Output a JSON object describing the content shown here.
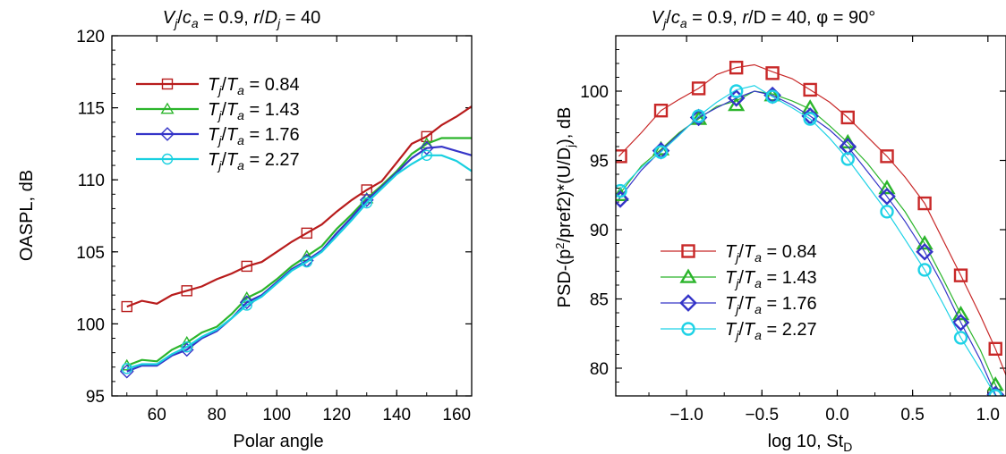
{
  "chart_data": [
    {
      "type": "line",
      "title_parts": {
        "v": "V",
        "j": "j",
        "slash": "/",
        "c": "c",
        "a": "a",
        "eq": " = 0.9, ",
        "r": "r",
        "slash2": "/",
        "D": "D",
        "j2": "j",
        "tail": " = 40"
      },
      "xlabel": "Polar angle",
      "ylabel": "OASPL, dB",
      "xlim": [
        45,
        165
      ],
      "ylim": [
        95,
        120
      ],
      "xticks": [
        "60",
        "80",
        "100",
        "120",
        "140",
        "160"
      ],
      "yticks": [
        "95",
        "100",
        "105",
        "110",
        "115",
        "120"
      ],
      "legend_position": "upper-left",
      "series": [
        {
          "name": "0.84",
          "color": "#b81c1c",
          "marker": "square",
          "x": [
            50,
            55,
            60,
            65,
            70,
            75,
            80,
            85,
            90,
            95,
            100,
            105,
            110,
            115,
            120,
            125,
            130,
            135,
            140,
            145,
            150,
            155,
            160,
            165
          ],
          "y": [
            101.2,
            101.6,
            101.4,
            102.0,
            102.3,
            102.6,
            103.1,
            103.5,
            104.0,
            104.3,
            105.0,
            105.7,
            106.3,
            106.9,
            107.8,
            108.6,
            109.3,
            109.9,
            111.2,
            112.5,
            113.0,
            113.8,
            114.4,
            115.1
          ],
          "marker_x": [
            50,
            70,
            90,
            110,
            130,
            150
          ],
          "marker_y": [
            101.2,
            102.3,
            104.0,
            106.3,
            109.3,
            113.0
          ]
        },
        {
          "name": "1.43",
          "color": "#2bb52b",
          "marker": "triangle",
          "x": [
            50,
            55,
            60,
            65,
            70,
            75,
            80,
            85,
            90,
            95,
            100,
            105,
            110,
            115,
            120,
            125,
            130,
            135,
            140,
            145,
            150,
            155,
            160,
            165
          ],
          "y": [
            97.1,
            97.5,
            97.4,
            98.2,
            98.7,
            99.4,
            99.8,
            100.7,
            101.8,
            102.3,
            103.1,
            104.0,
            104.7,
            105.4,
            106.6,
            107.6,
            108.7,
            109.6,
            110.6,
            111.8,
            112.5,
            112.9,
            112.9,
            112.9
          ],
          "marker_x": [
            50,
            70,
            90,
            110,
            130,
            150
          ],
          "marker_y": [
            97.1,
            98.7,
            101.8,
            104.7,
            108.7,
            112.5
          ]
        },
        {
          "name": "1.76",
          "color": "#3535c8",
          "marker": "diamond",
          "x": [
            50,
            55,
            60,
            65,
            70,
            75,
            80,
            85,
            90,
            95,
            100,
            105,
            110,
            115,
            120,
            125,
            130,
            135,
            140,
            145,
            150,
            155,
            160,
            165
          ],
          "y": [
            96.7,
            97.1,
            97.1,
            97.8,
            98.2,
            99.0,
            99.5,
            100.4,
            101.5,
            102.0,
            102.9,
            103.8,
            104.4,
            105.1,
            106.3,
            107.4,
            108.6,
            109.5,
            110.5,
            111.5,
            112.2,
            112.3,
            112.0,
            111.7
          ],
          "marker_x": [
            50,
            70,
            90,
            110,
            130,
            150
          ],
          "marker_y": [
            96.7,
            98.2,
            101.5,
            104.4,
            108.6,
            112.2
          ]
        },
        {
          "name": "2.27",
          "color": "#19d0e0",
          "marker": "circle",
          "x": [
            50,
            55,
            60,
            65,
            70,
            75,
            80,
            85,
            90,
            95,
            100,
            105,
            110,
            115,
            120,
            125,
            130,
            135,
            140,
            145,
            150,
            155,
            160,
            165
          ],
          "y": [
            96.9,
            97.2,
            97.2,
            97.9,
            98.4,
            99.1,
            99.6,
            100.4,
            101.3,
            101.9,
            102.8,
            103.7,
            104.3,
            105.0,
            106.1,
            107.2,
            108.4,
            109.4,
            110.4,
            111.1,
            111.7,
            111.7,
            111.3,
            110.6
          ],
          "marker_x": [
            50,
            70,
            90,
            110,
            130,
            150
          ],
          "marker_y": [
            96.9,
            98.4,
            101.3,
            104.3,
            108.4,
            111.7
          ]
        }
      ]
    },
    {
      "type": "line",
      "title_parts": {
        "v": "V",
        "j": "j",
        "slash": "/",
        "c": "c",
        "a": "a",
        "eq": " = 0.9, ",
        "r": "r",
        "slash2": "/",
        "D": "D = 40, ",
        "phi": "φ = 90°"
      },
      "xlabel_main": "log 10, St",
      "xlabel_sub": "D",
      "ylabel_parts": {
        "a": "PSD-(p",
        "b": "2",
        "c": "/pref2)*(U/D",
        "d": "j",
        "e": "), dB"
      },
      "xlim": [
        -1.47,
        1.12
      ],
      "ylim": [
        78,
        104
      ],
      "xticks": [
        "−1.0",
        "−0.5",
        "0.0",
        "0.5",
        "1.0"
      ],
      "yticks": [
        "80",
        "85",
        "90",
        "95",
        "100"
      ],
      "legend_position": "lower-left",
      "series": [
        {
          "name": "0.84",
          "color": "#c82828",
          "marker": "square",
          "x": [
            -1.45,
            -1.3,
            -1.17,
            -1.05,
            -0.92,
            -0.8,
            -0.67,
            -0.55,
            -0.43,
            -0.3,
            -0.18,
            -0.05,
            0.07,
            0.2,
            0.33,
            0.45,
            0.58,
            0.7,
            0.82,
            0.95,
            1.05,
            1.12
          ],
          "y": [
            95.3,
            97.0,
            98.6,
            99.4,
            100.2,
            101.2,
            101.7,
            101.9,
            101.4,
            100.9,
            100.1,
            99.2,
            98.1,
            96.7,
            95.3,
            93.8,
            91.9,
            89.3,
            86.7,
            83.8,
            81.4,
            79.5
          ],
          "marker_x": [
            -1.44,
            -1.17,
            -0.92,
            -0.67,
            -0.43,
            -0.18,
            0.07,
            0.33,
            0.58,
            0.82,
            1.05
          ],
          "marker_y": [
            95.3,
            98.6,
            100.2,
            101.7,
            101.3,
            100.1,
            98.1,
            95.3,
            91.9,
            86.7,
            81.4
          ]
        },
        {
          "name": "1.43",
          "color": "#2bb52b",
          "marker": "triangle",
          "x": [
            -1.45,
            -1.3,
            -1.17,
            -1.05,
            -0.92,
            -0.8,
            -0.67,
            -0.55,
            -0.43,
            -0.3,
            -0.18,
            -0.05,
            0.07,
            0.2,
            0.33,
            0.45,
            0.58,
            0.7,
            0.82,
            0.95,
            1.05,
            1.12
          ],
          "y": [
            92.5,
            94.6,
            95.8,
            97.0,
            98.0,
            98.9,
            99.3,
            100.0,
            99.8,
            99.3,
            98.7,
            97.5,
            96.3,
            94.8,
            93.0,
            91.3,
            89.0,
            86.5,
            83.9,
            81.3,
            78.8,
            77.5
          ],
          "marker_x": [
            -1.44,
            -1.17,
            -0.92,
            -0.67,
            -0.43,
            -0.18,
            0.07,
            0.33,
            0.58,
            0.82,
            1.05
          ],
          "marker_y": [
            92.5,
            95.8,
            98.0,
            99.0,
            99.7,
            98.8,
            96.3,
            93.0,
            89.0,
            83.9,
            78.8
          ]
        },
        {
          "name": "1.76",
          "color": "#3434c8",
          "marker": "diamond",
          "x": [
            -1.45,
            -1.3,
            -1.17,
            -1.05,
            -0.92,
            -0.8,
            -0.67,
            -0.55,
            -0.43,
            -0.3,
            -0.18,
            -0.05,
            0.07,
            0.2,
            0.33,
            0.45,
            0.58,
            0.7,
            0.82,
            0.95,
            1.05,
            1.12
          ],
          "y": [
            92.2,
            94.3,
            95.7,
            96.9,
            98.1,
            98.8,
            99.5,
            100.0,
            99.7,
            99.0,
            98.2,
            97.2,
            96.0,
            94.2,
            92.4,
            90.6,
            88.4,
            86.0,
            83.3,
            80.6,
            78.1,
            77.0
          ],
          "marker_x": [
            -1.44,
            -1.17,
            -0.92,
            -0.67,
            -0.43,
            -0.18,
            0.07,
            0.33,
            0.58,
            0.82,
            1.05
          ],
          "marker_y": [
            92.2,
            95.7,
            98.1,
            99.5,
            99.7,
            98.2,
            96.0,
            92.4,
            88.4,
            83.3,
            78.1
          ]
        },
        {
          "name": "2.27",
          "color": "#1ed2e6",
          "marker": "circle",
          "x": [
            -1.45,
            -1.3,
            -1.17,
            -1.05,
            -0.92,
            -0.8,
            -0.67,
            -0.55,
            -0.43,
            -0.3,
            -0.18,
            -0.05,
            0.07,
            0.2,
            0.33,
            0.45,
            0.58,
            0.7,
            0.82,
            0.95,
            1.05,
            1.12
          ],
          "y": [
            92.8,
            94.5,
            95.6,
            96.8,
            98.2,
            99.2,
            100.1,
            100.4,
            99.6,
            98.8,
            98.0,
            96.6,
            95.1,
            93.2,
            91.3,
            89.3,
            87.1,
            84.7,
            82.2,
            79.9,
            78.0,
            77.0
          ],
          "marker_x": [
            -1.44,
            -1.17,
            -0.92,
            -0.67,
            -0.43,
            -0.18,
            0.07,
            0.33,
            0.58,
            0.82,
            1.05
          ],
          "marker_y": [
            92.8,
            95.6,
            98.2,
            100.0,
            99.6,
            98.0,
            95.1,
            91.3,
            87.1,
            82.2,
            78.0
          ]
        }
      ]
    }
  ],
  "legend_text": {
    "T": "T",
    "j": "j",
    "slash": "/",
    "Ta": "T",
    "a": "a",
    "eq": " = "
  }
}
